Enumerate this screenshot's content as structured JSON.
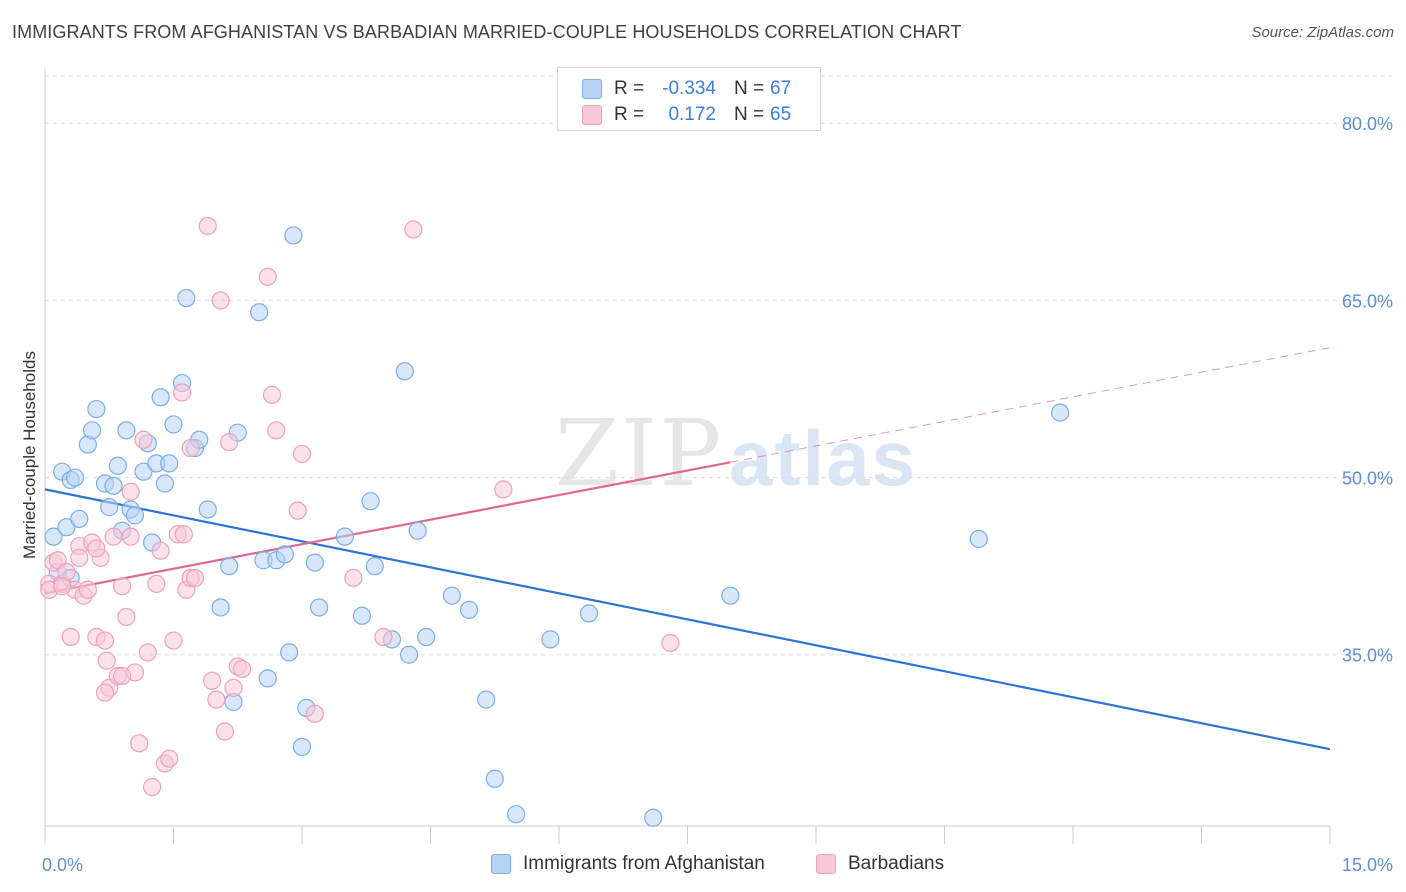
{
  "title": "IMMIGRANTS FROM AFGHANISTAN VS BARBADIAN MARRIED-COUPLE HOUSEHOLDS CORRELATION CHART",
  "source": "Source: ZipAtlas.com",
  "watermark": {
    "zip": "ZIP",
    "atlas": "atlas"
  },
  "legend_top": [
    {
      "r_label": "R =",
      "r_value": "-0.334",
      "n_label": "N =",
      "n_value": "67"
    },
    {
      "r_label": "R =",
      "r_value": "0.172",
      "n_label": "N =",
      "n_value": "65"
    }
  ],
  "chart_data": {
    "type": "scatter",
    "title": "IMMIGRANTS FROM AFGHANISTAN VS BARBADIAN MARRIED-COUPLE HOUSEHOLDS CORRELATION CHART",
    "xlabel": "",
    "ylabel": "Married-couple Households",
    "xlim": [
      0,
      15
    ],
    "ylim": [
      20.5,
      84
    ],
    "x_tick_labels": [
      {
        "value": 0,
        "label": "0.0%"
      },
      {
        "value": 15,
        "label": "15.0%"
      }
    ],
    "y_tick_labels": [
      {
        "value": 80,
        "label": "80.0%"
      },
      {
        "value": 65,
        "label": "65.0%"
      },
      {
        "value": 50,
        "label": "50.0%"
      },
      {
        "value": 35,
        "label": "35.0%"
      }
    ],
    "grid": true,
    "legend_position": "bottom",
    "series": [
      {
        "name": "Immigrants from Afghanistan",
        "color": "#7aaee8",
        "fill": "#b8d4f4",
        "trend_color": "#2f74d0",
        "trend": {
          "x0": 0,
          "y0": 49.0,
          "x1": 15,
          "y1": 27.0,
          "solid_to": 15
        },
        "points": [
          [
            0.1,
            45.0
          ],
          [
            0.2,
            50.5
          ],
          [
            0.25,
            45.8
          ],
          [
            0.3,
            49.8
          ],
          [
            0.35,
            50.0
          ],
          [
            0.4,
            46.5
          ],
          [
            0.5,
            52.8
          ],
          [
            0.55,
            54.0
          ],
          [
            0.6,
            55.8
          ],
          [
            0.7,
            49.5
          ],
          [
            0.75,
            47.5
          ],
          [
            0.8,
            49.3
          ],
          [
            0.85,
            51.0
          ],
          [
            0.9,
            45.5
          ],
          [
            0.95,
            54.0
          ],
          [
            1.0,
            47.3
          ],
          [
            1.05,
            46.8
          ],
          [
            1.15,
            50.5
          ],
          [
            1.2,
            52.9
          ],
          [
            1.25,
            44.5
          ],
          [
            1.3,
            51.2
          ],
          [
            1.35,
            56.8
          ],
          [
            1.4,
            49.5
          ],
          [
            1.45,
            51.2
          ],
          [
            1.5,
            54.5
          ],
          [
            1.6,
            58.0
          ],
          [
            1.65,
            65.2
          ],
          [
            1.75,
            52.5
          ],
          [
            1.8,
            53.2
          ],
          [
            1.9,
            47.3
          ],
          [
            2.05,
            39.0
          ],
          [
            2.15,
            42.5
          ],
          [
            2.2,
            31.0
          ],
          [
            2.25,
            53.8
          ],
          [
            2.5,
            64.0
          ],
          [
            2.55,
            43.0
          ],
          [
            2.6,
            33.0
          ],
          [
            2.7,
            43.0
          ],
          [
            2.8,
            43.5
          ],
          [
            2.85,
            35.2
          ],
          [
            2.9,
            70.5
          ],
          [
            3.0,
            27.2
          ],
          [
            3.05,
            30.5
          ],
          [
            3.15,
            42.8
          ],
          [
            3.2,
            39.0
          ],
          [
            3.5,
            45.0
          ],
          [
            3.7,
            38.3
          ],
          [
            3.8,
            48.0
          ],
          [
            3.85,
            42.5
          ],
          [
            4.05,
            36.3
          ],
          [
            4.2,
            59.0
          ],
          [
            4.25,
            35.0
          ],
          [
            4.35,
            45.5
          ],
          [
            4.45,
            36.5
          ],
          [
            4.75,
            40.0
          ],
          [
            4.95,
            38.8
          ],
          [
            5.15,
            31.2
          ],
          [
            5.25,
            24.5
          ],
          [
            5.5,
            21.5
          ],
          [
            5.9,
            36.3
          ],
          [
            6.35,
            38.5
          ],
          [
            7.1,
            21.2
          ],
          [
            8.0,
            40.0
          ],
          [
            10.9,
            44.8
          ],
          [
            11.85,
            55.5
          ],
          [
            0.15,
            42.0
          ],
          [
            0.3,
            41.5
          ]
        ]
      },
      {
        "name": "Barbadians",
        "color": "#f0a0bc",
        "fill": "#f8c8d8",
        "trend_color": "#e06890",
        "trend": {
          "x0": 0,
          "y0": 40.2,
          "x1": 15,
          "y1": 61.0,
          "solid_to": 8.0
        },
        "points": [
          [
            0.05,
            41.0
          ],
          [
            0.1,
            42.8
          ],
          [
            0.15,
            43.0
          ],
          [
            0.2,
            41.0
          ],
          [
            0.25,
            42.0
          ],
          [
            0.3,
            36.5
          ],
          [
            0.35,
            40.5
          ],
          [
            0.4,
            44.2
          ],
          [
            0.45,
            40.0
          ],
          [
            0.5,
            40.5
          ],
          [
            0.55,
            44.5
          ],
          [
            0.6,
            36.5
          ],
          [
            0.65,
            43.2
          ],
          [
            0.7,
            36.2
          ],
          [
            0.72,
            34.5
          ],
          [
            0.75,
            32.2
          ],
          [
            0.8,
            45.0
          ],
          [
            0.85,
            33.2
          ],
          [
            0.9,
            40.8
          ],
          [
            0.95,
            38.2
          ],
          [
            1.0,
            45.0
          ],
          [
            1.05,
            33.5
          ],
          [
            1.1,
            27.5
          ],
          [
            1.15,
            53.2
          ],
          [
            1.2,
            35.2
          ],
          [
            1.25,
            23.8
          ],
          [
            1.3,
            41.0
          ],
          [
            1.35,
            43.8
          ],
          [
            1.4,
            25.8
          ],
          [
            1.45,
            26.2
          ],
          [
            1.5,
            36.2
          ],
          [
            1.55,
            45.2
          ],
          [
            1.6,
            57.2
          ],
          [
            1.62,
            45.2
          ],
          [
            1.65,
            40.5
          ],
          [
            1.7,
            41.5
          ],
          [
            1.75,
            41.5
          ],
          [
            1.9,
            71.3
          ],
          [
            1.95,
            32.8
          ],
          [
            2.0,
            31.2
          ],
          [
            2.05,
            65.0
          ],
          [
            2.1,
            28.5
          ],
          [
            2.15,
            53.0
          ],
          [
            2.2,
            32.2
          ],
          [
            2.25,
            34.0
          ],
          [
            2.3,
            33.8
          ],
          [
            2.6,
            67.0
          ],
          [
            2.65,
            57.0
          ],
          [
            2.7,
            54.0
          ],
          [
            2.95,
            47.2
          ],
          [
            3.0,
            52.0
          ],
          [
            3.15,
            30.0
          ],
          [
            3.6,
            41.5
          ],
          [
            3.95,
            36.5
          ],
          [
            4.3,
            71.0
          ],
          [
            5.35,
            49.0
          ],
          [
            7.3,
            36.0
          ],
          [
            0.9,
            33.2
          ],
          [
            1.0,
            48.8
          ],
          [
            0.7,
            31.8
          ],
          [
            0.05,
            40.5
          ],
          [
            0.4,
            43.2
          ],
          [
            0.6,
            44.0
          ],
          [
            0.2,
            40.8
          ],
          [
            1.7,
            52.5
          ]
        ]
      }
    ]
  }
}
